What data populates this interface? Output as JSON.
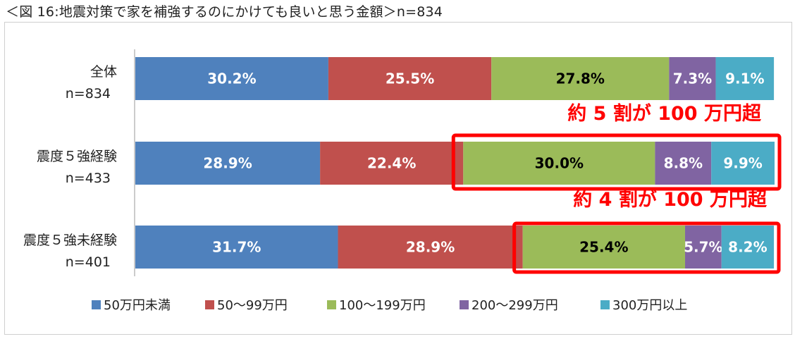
{
  "title": "＜図 16:地震対策で家を補強するのにかけても良いと思う金額＞n=834",
  "chart_data": {
    "type": "bar",
    "orientation": "horizontal",
    "stacked": "percent",
    "categories": [
      {
        "name": "全体",
        "n": "n=834"
      },
      {
        "name": "震度５強経験",
        "n": "n=433"
      },
      {
        "name": "震度５強未経験",
        "n": "n=401"
      }
    ],
    "series": [
      {
        "name": "50万円未満",
        "color": "#4f81bd",
        "label_color": "#ffffff",
        "values": [
          30.2,
          28.9,
          31.7
        ]
      },
      {
        "name": "50〜99万円",
        "color": "#c0504d",
        "label_color": "#ffffff",
        "values": [
          25.5,
          22.4,
          28.9
        ]
      },
      {
        "name": "100〜199万円",
        "color": "#9bbb59",
        "label_color": "#000000",
        "values": [
          27.8,
          30.0,
          25.4
        ]
      },
      {
        "name": "200〜299万円",
        "color": "#8064a2",
        "label_color": "#ffffff",
        "values": [
          7.3,
          8.8,
          5.7
        ]
      },
      {
        "name": "300万円以上",
        "color": "#4bacc6",
        "label_color": "#ffffff",
        "values": [
          9.1,
          9.9,
          8.2
        ]
      }
    ],
    "value_suffix": "%",
    "xlim": [
      0,
      100
    ],
    "grid": false,
    "legend": "bottom",
    "annotations": [
      {
        "text": "約 5 割が 100 万円超",
        "category_index": 1,
        "from_series": 2,
        "color": "#ff0000"
      },
      {
        "text": "約 4 割が 100 万円超",
        "category_index": 2,
        "from_series": 2,
        "color": "#ff0000"
      }
    ]
  }
}
